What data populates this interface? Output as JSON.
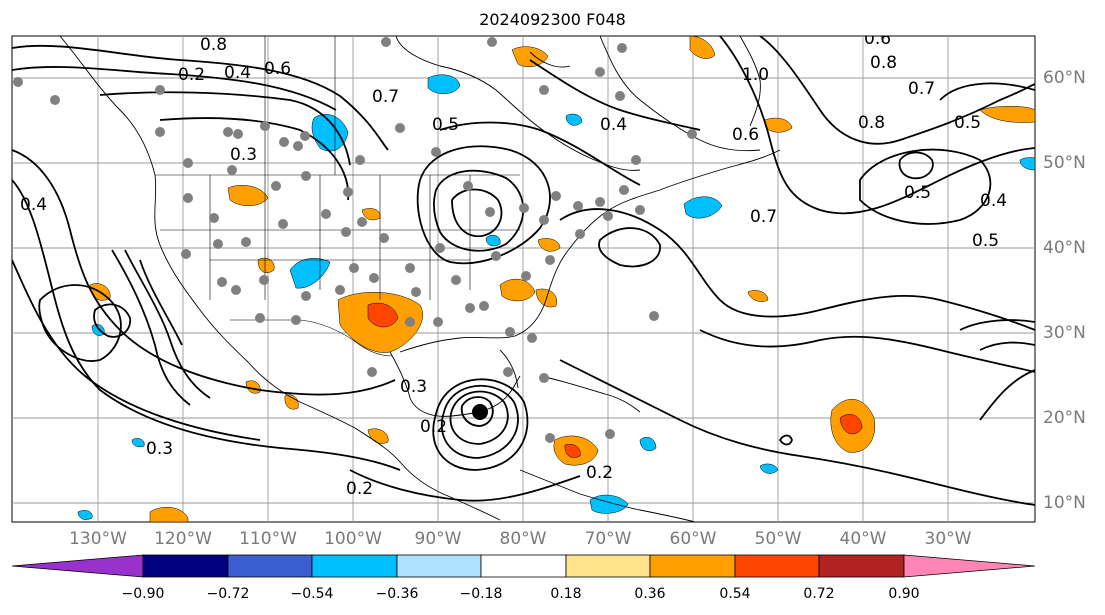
{
  "title": "2024092300 F048",
  "lon_labels": [
    "130°W",
    "120°W",
    "110°W",
    "100°W",
    "90°W",
    "80°W",
    "70°W",
    "60°W",
    "50°W",
    "40°W",
    "30°W"
  ],
  "lat_labels": [
    "60°N",
    "50°N",
    "40°N",
    "30°N",
    "20°N",
    "10°N"
  ],
  "colorbar": {
    "ticks": [
      "−0.90",
      "−0.72",
      "−0.54",
      "−0.36",
      "−0.18",
      "0.18",
      "0.36",
      "0.54",
      "0.72",
      "0.90"
    ],
    "colors": [
      "#9932cc",
      "#000080",
      "#3b5fd0",
      "#00bfff",
      "#aee0ff",
      "#ffffff",
      "#ffe38c",
      "#ffa000",
      "#ff4500",
      "#b22222",
      "#ff85b4"
    ]
  },
  "contour_labels": [
    "0.8",
    "0.6",
    "0.4",
    "0.2",
    "0.7",
    "0.5",
    "0.4",
    "0.3",
    "0.6",
    "0.8",
    "1.0",
    "0.5",
    "0.4",
    "0.3",
    "0.2",
    "0.2",
    "0.7",
    "0.5",
    "0.4",
    "0.5",
    "0.7",
    "0.8",
    "0.6",
    "0.3",
    "0.2"
  ]
}
